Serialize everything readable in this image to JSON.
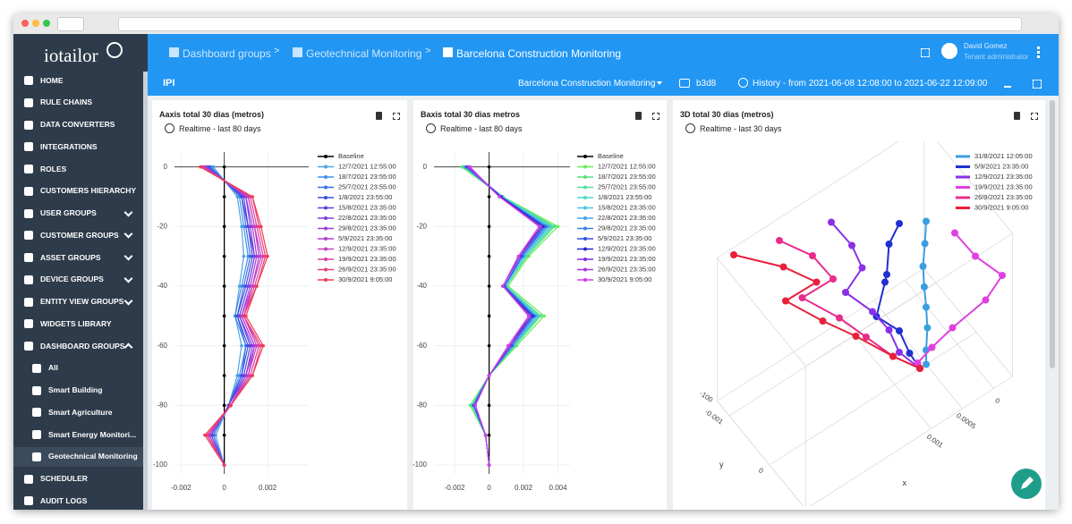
{
  "sidebar": {
    "logo": "iotailor",
    "items": [
      "HOME",
      "RULE CHAINS",
      "DATA CONVERTERS",
      "INTEGRATIONS",
      "ROLES",
      "CUSTOMERS HIERARCHY",
      "USER GROUPS",
      "CUSTOMER GROUPS",
      "ASSET GROUPS",
      "DEVICE GROUPS",
      "ENTITY VIEW GROUPS",
      "WIDGETS LIBRARY",
      "DASHBOARD GROUPS",
      "All",
      "Smart Building",
      "Smart Agriculture",
      "Smart Energy Monitori...",
      "Geotechnical Monitoring",
      "SCHEDULER",
      "AUDIT LOGS"
    ]
  },
  "topbar": {
    "breadcrumbs": [
      "Dashboard groups",
      "Geotechnical Monitoring",
      "Barcelona Construction Monitoring"
    ],
    "separator": ">",
    "user_name": "David Gomez",
    "user_role": "Tenant administrator"
  },
  "toolbar": {
    "title": "IPI",
    "dashboard": "Barcelona Construction Monitoring",
    "entity": "b3d8",
    "history": "History - from 2021-06-08 12:08:00 to 2021-06-22 12:09:00"
  },
  "chart_data": [
    {
      "type": "line",
      "title": "Aaxis total 30 dias (metros)",
      "subtitle": "Realtime - last 80 days",
      "y": [
        0,
        -10,
        -20,
        -30,
        -40,
        -50,
        -60,
        -70,
        -80,
        -90,
        -100
      ],
      "xlim": [
        -0.0023,
        0.0039
      ],
      "xticks": [
        -0.002,
        0,
        0.002
      ],
      "ylim": [
        -103,
        5
      ],
      "yticks": [
        0,
        -20,
        -40,
        -60,
        -80,
        -100
      ],
      "grid": true,
      "series": [
        {
          "name": "Baseline",
          "color": "#000000",
          "values": [
            0,
            0,
            0,
            0,
            0,
            0,
            0,
            0,
            0,
            0,
            0
          ]
        },
        {
          "name": "12/7/2021 12:55:00",
          "color": "#4fa3e0",
          "values": [
            -0.0005,
            0.0006,
            0.0008,
            0.0009,
            0.0007,
            0.0005,
            0.0008,
            0.0006,
            0.0002,
            -0.0004,
            0
          ]
        },
        {
          "name": "18/7/2021 23:55:00",
          "color": "#3f8ee8",
          "values": [
            -0.0006,
            0.0007,
            0.0009,
            0.0011,
            0.0008,
            0.0005,
            0.001,
            0.0007,
            0.0002,
            -0.0005,
            0
          ]
        },
        {
          "name": "25/7/2021 23:55:00",
          "color": "#3a6fe6",
          "values": [
            -0.0007,
            0.0008,
            0.001,
            0.0012,
            0.0009,
            0.0006,
            0.001,
            0.0008,
            0.0002,
            -0.0005,
            0
          ]
        },
        {
          "name": "1/8/2021 23:55:00",
          "color": "#3b4fe0",
          "values": [
            -0.0007,
            0.0008,
            0.0011,
            0.0013,
            0.001,
            0.0006,
            0.0011,
            0.0008,
            0.0002,
            -0.0006,
            0
          ]
        },
        {
          "name": "15/8/2021 23:35:00",
          "color": "#5a3fe0",
          "values": [
            -0.0008,
            0.0009,
            0.0011,
            0.0014,
            0.0011,
            0.0007,
            0.0012,
            0.0009,
            0.0002,
            -0.0006,
            0
          ]
        },
        {
          "name": "22/8/2021 23:35:00",
          "color": "#7b3fe0",
          "values": [
            -0.0008,
            0.001,
            0.0012,
            0.0014,
            0.0011,
            0.0007,
            0.0013,
            0.001,
            0.0002,
            -0.0006,
            0
          ]
        },
        {
          "name": "29/8/2021 23:35:00",
          "color": "#9b3fd8",
          "values": [
            -0.0009,
            0.001,
            0.0013,
            0.0015,
            0.0012,
            0.0008,
            0.0014,
            0.001,
            0.0003,
            -0.0007,
            0
          ]
        },
        {
          "name": "5/9/2021 23:35:00",
          "color": "#b03fd0",
          "values": [
            -0.0009,
            0.0011,
            0.0014,
            0.0016,
            0.0013,
            0.0008,
            0.0014,
            0.0011,
            0.0003,
            -0.0007,
            0
          ]
        },
        {
          "name": "12/9/2021 23:35:00",
          "color": "#c83fc0",
          "values": [
            -0.001,
            0.0011,
            0.0014,
            0.0017,
            0.0013,
            0.0009,
            0.0015,
            0.0011,
            0.0003,
            -0.0008,
            0
          ]
        },
        {
          "name": "19/9/2021 23:35:00",
          "color": "#d83fa0",
          "values": [
            -0.001,
            0.0012,
            0.0015,
            0.0018,
            0.0014,
            0.0009,
            0.0016,
            0.0012,
            0.0003,
            -0.0008,
            0
          ]
        },
        {
          "name": "26/9/2021 23:35:00",
          "color": "#e83f80",
          "values": [
            -0.0011,
            0.0013,
            0.0016,
            0.0019,
            0.0015,
            0.0009,
            0.0017,
            0.0013,
            0.0003,
            -0.0008,
            0
          ]
        },
        {
          "name": "30/9/2021 9:05:00",
          "color": "#f03c50",
          "values": [
            -0.0011,
            0.0013,
            0.0017,
            0.002,
            0.0015,
            0.001,
            0.0018,
            0.0013,
            0.0003,
            -0.0009,
            0
          ]
        }
      ]
    },
    {
      "type": "line",
      "title": "Baxis total 30 dias metros",
      "subtitle": "Realtime - last 80 days",
      "y": [
        0,
        -10,
        -20,
        -30,
        -40,
        -50,
        -60,
        -70,
        -80,
        -90,
        -100
      ],
      "xlim": [
        -0.0032,
        0.0047
      ],
      "xticks": [
        -0.002,
        0,
        0.002,
        0.004
      ],
      "ylim": [
        -103,
        5
      ],
      "yticks": [
        0,
        -20,
        -40,
        -60,
        -80,
        -100
      ],
      "grid": true,
      "series": [
        {
          "name": "Baseline",
          "color": "#000000",
          "values": [
            0,
            0,
            0,
            0,
            0,
            0,
            0,
            0,
            0,
            0,
            0
          ]
        },
        {
          "name": "12/7/2021 12:55:00",
          "color": "#66ee55",
          "values": [
            -0.0016,
            0.0008,
            0.004,
            0.0023,
            0.0011,
            0.0032,
            0.0016,
            0,
            -0.0011,
            -0.0002,
            0
          ]
        },
        {
          "name": "18/7/2021 23:55:00",
          "color": "#55e07a",
          "values": [
            -0.0015,
            0.0008,
            0.0038,
            0.0022,
            0.001,
            0.003,
            0.0015,
            0,
            -0.001,
            -0.0002,
            0
          ]
        },
        {
          "name": "25/7/2021 23:55:00",
          "color": "#50e0a0",
          "values": [
            -0.0015,
            0.0008,
            0.0037,
            0.0021,
            0.001,
            0.0029,
            0.0015,
            0,
            -0.001,
            -0.0002,
            0
          ]
        },
        {
          "name": "1/8/2021 23:55:00",
          "color": "#4ed8c8",
          "values": [
            -0.0014,
            0.0008,
            0.0036,
            0.0021,
            0.001,
            0.0029,
            0.0014,
            0,
            -0.001,
            -0.0002,
            0
          ]
        },
        {
          "name": "15/8/2021 23:35:00",
          "color": "#45c8e0",
          "values": [
            -0.0014,
            0.0007,
            0.0035,
            0.002,
            0.0009,
            0.0028,
            0.0014,
            0,
            -0.0009,
            -0.0002,
            0
          ]
        },
        {
          "name": "22/8/2021 23:35:00",
          "color": "#3fa8e8",
          "values": [
            -0.0014,
            0.0007,
            0.0034,
            0.002,
            0.0009,
            0.0027,
            0.0014,
            0,
            -0.0009,
            -0.0002,
            0
          ]
        },
        {
          "name": "29/8/2021 23:35:00",
          "color": "#3a80e8",
          "values": [
            -0.0013,
            0.0007,
            0.0033,
            0.0019,
            0.0009,
            0.0026,
            0.0013,
            0,
            -0.0009,
            -0.0002,
            0
          ]
        },
        {
          "name": "5/9/2021 23:35:00",
          "color": "#2f50e0",
          "values": [
            -0.0013,
            0.0007,
            0.0032,
            0.0019,
            0.0009,
            0.0026,
            0.0013,
            0,
            -0.0009,
            -0.0002,
            0
          ]
        },
        {
          "name": "12/9/2021 23:35:00",
          "color": "#2828d0",
          "values": [
            -0.0012,
            0.0007,
            0.0031,
            0.0018,
            0.0008,
            0.0025,
            0.0012,
            0,
            -0.0008,
            -0.0002,
            0
          ]
        },
        {
          "name": "19/9/2021 23:35:00",
          "color": "#7a30e0",
          "values": [
            -0.0012,
            0.0006,
            0.003,
            0.0018,
            0.0008,
            0.0024,
            0.0012,
            0,
            -0.0008,
            -0.0002,
            0
          ]
        },
        {
          "name": "26/9/2021 23:35:00",
          "color": "#a535e0",
          "values": [
            -0.0012,
            0.0006,
            0.003,
            0.0017,
            0.0008,
            0.0023,
            0.0012,
            0,
            -0.0008,
            -0.0002,
            0
          ]
        },
        {
          "name": "30/9/2021 9:05:00",
          "color": "#d040e8",
          "values": [
            -0.0011,
            0.0006,
            0.0029,
            0.0017,
            0.0008,
            0.0023,
            0.0011,
            0,
            -0.0008,
            -0.0002,
            0
          ]
        }
      ]
    },
    {
      "type": "line3d",
      "title": "3D total 30 dias (metros)",
      "subtitle": "Realtime - last 30 days",
      "xlabel": "x",
      "ylabel": "y",
      "z": [
        0,
        -15,
        -30,
        -45,
        -60,
        -75,
        -90,
        -100
      ],
      "xticks": [
        0,
        0.0005,
        0.001
      ],
      "yticks": [
        -0.001,
        0
      ],
      "zticks": [
        -100
      ],
      "series": [
        {
          "name": "31/8/2021 12:05:00",
          "color": "#3a9ee0",
          "x": [
            0.0005,
            0.00052,
            0.00055,
            0.00053,
            0.0005,
            0.00048,
            0.0005,
            0.0005
          ],
          "y": [
            0,
            0,
            0,
            0,
            0,
            0,
            0,
            0
          ]
        },
        {
          "name": "5/9/2021 23:35:00",
          "color": "#2030d0",
          "x": [
            0.0008,
            0.0009,
            0.001,
            0.0009,
            0.0011,
            0.0008,
            0.0007,
            0.0006
          ],
          "y": [
            -0.0002,
            -0.0003,
            -0.0002,
            -0.0004,
            -0.0003,
            -0.0002,
            -0.0001,
            0
          ]
        },
        {
          "name": "12/9/2021 23:35:00",
          "color": "#8a30e8",
          "x": [
            0.0015,
            0.0013,
            0.0012,
            0.0014,
            0.0011,
            0.0009,
            0.0008,
            0.0006
          ],
          "y": [
            -0.0008,
            -0.0006,
            -0.0005,
            -0.0006,
            -0.0004,
            -0.0003,
            -0.0002,
            0
          ]
        },
        {
          "name": "19/9/2021 23:35:00",
          "color": "#e040e0",
          "x": [
            0.0003,
            0.0001,
            -0.0002,
            0,
            0.0004,
            0.0006,
            0.0007,
            0.0006
          ],
          "y": [
            0.0004,
            0.0006,
            0.0008,
            0.0007,
            0.0005,
            0.0003,
            0.0001,
            0
          ]
        },
        {
          "name": "26/9/2021 23:35:00",
          "color": "#e82c8a",
          "x": [
            0.0022,
            0.0018,
            0.0016,
            0.0019,
            0.0015,
            0.0012,
            0.0009,
            0.0006
          ],
          "y": [
            -0.001,
            -0.0008,
            -0.0006,
            -0.0009,
            -0.0006,
            -0.0004,
            -0.0002,
            0
          ]
        },
        {
          "name": "30/9/2021 9:05:00",
          "color": "#e8203a",
          "x": [
            0.0028,
            0.0022,
            0.0018,
            0.0021,
            0.0017,
            0.0013,
            0.0009,
            0.0006
          ],
          "y": [
            -0.0012,
            -0.0009,
            -0.0007,
            -0.001,
            -0.0007,
            -0.0005,
            -0.0002,
            0
          ]
        }
      ]
    }
  ]
}
